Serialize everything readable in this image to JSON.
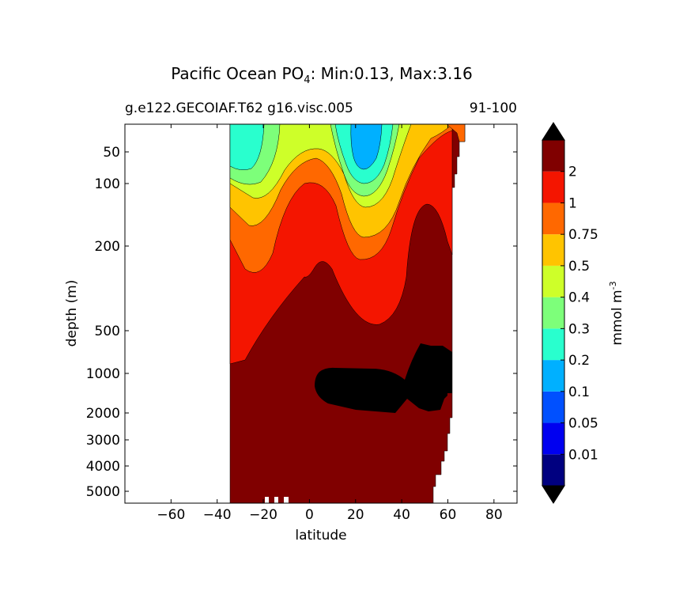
{
  "chart_data": {
    "type": "contour",
    "title": "Pacific Ocean PO",
    "title_subscript": "4",
    "title_suffix": ": Min:0.13, Max:3.16",
    "subtitle_left": "g.e122.GECOIAF.T62 g16.visc.005",
    "subtitle_right": "91-100",
    "xlabel": "latitude",
    "ylabel": "depth (m)",
    "x_ticks": [
      -60,
      -40,
      -20,
      0,
      20,
      40,
      60,
      80
    ],
    "xlim": [
      -80,
      90
    ],
    "y_ticks": [
      50,
      100,
      200,
      500,
      1000,
      2000,
      3000,
      4000,
      5000
    ],
    "ylim": [
      0,
      5500
    ],
    "y_scale": "piecewise-nonlinear",
    "grid": false,
    "colorbar": {
      "label": "mmol m",
      "label_superscript": "-3",
      "levels": [
        0.01,
        0.05,
        0.1,
        0.2,
        0.3,
        0.4,
        0.5,
        0.75,
        1,
        2
      ],
      "level_labels": [
        "0.01",
        "0.05",
        "0.1",
        "0.2",
        "0.3",
        "0.4",
        "0.5",
        "0.75",
        "1",
        "2"
      ],
      "colors": [
        "#000080",
        "#0000f0",
        "#0050ff",
        "#00b0ff",
        "#29ffce",
        "#7dff7a",
        "#ceff29",
        "#ffc400",
        "#ff6800",
        "#f41500",
        "#800000"
      ],
      "extend": "both",
      "extend_color": "#000000"
    },
    "data_extent": {
      "lat_south_edge": -34,
      "lat_north_edge_surface": 67,
      "lat_north_edge_bottom": 52
    },
    "features": [
      {
        "value_range": "0.3-0.4",
        "lat": -25,
        "depth_range": [
          0,
          60
        ],
        "note": "low PO4 southern subtropical gyre"
      },
      {
        "value_range": "0.1-0.2",
        "lat": 24,
        "depth_range": [
          0,
          60
        ],
        "note": "lowest PO4 northern subtropical gyre"
      },
      {
        "value_range": ">2",
        "lat_range": [
          -34,
          52
        ],
        "depth_range": [
          600,
          5500
        ],
        "note": "deep water"
      },
      {
        "value_range": ">3.16 max",
        "lat_range": [
          3,
          62
        ],
        "depth_range": [
          800,
          2000
        ],
        "note": "PO4 maximum core"
      }
    ]
  }
}
